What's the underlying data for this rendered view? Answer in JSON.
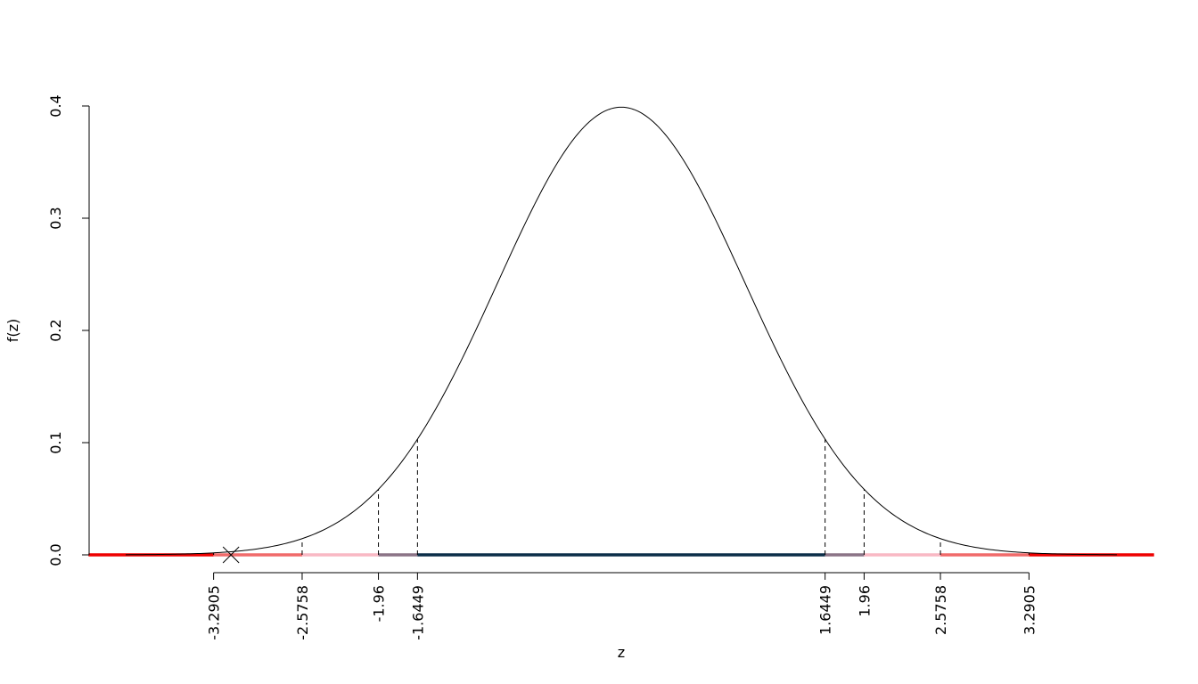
{
  "chart_data": {
    "type": "line",
    "title": "",
    "xlabel": "z",
    "ylabel": "f(z)",
    "xlim": [
      -4.3,
      4.3
    ],
    "ylim": [
      0,
      0.4
    ],
    "yticks": [
      0.0,
      0.1,
      0.2,
      0.3,
      0.4
    ],
    "ytick_labels": [
      "0.0",
      "0.1",
      "0.2",
      "0.3",
      "0.4"
    ],
    "xticks": [
      -3.2905,
      -2.5758,
      -1.96,
      -1.6449,
      1.6449,
      1.96,
      2.5758,
      3.2905
    ],
    "xtick_labels": [
      "-3.2905",
      "-2.5758",
      "-1.96",
      "-1.6449",
      "1.6449",
      "1.96",
      "2.5758",
      "3.2905"
    ],
    "curve": {
      "distribution": "standard normal density",
      "x_range": [
        -4,
        4
      ]
    },
    "critical_values": [
      -3.2905,
      -2.5758,
      -1.96,
      -1.6449,
      1.6449,
      1.96,
      2.5758,
      3.2905
    ],
    "segments": [
      {
        "from": -4.3,
        "to": -3.2905,
        "color": "#ee0000"
      },
      {
        "from": -3.2905,
        "to": -2.5758,
        "color": "#f06a6a"
      },
      {
        "from": -2.5758,
        "to": -1.96,
        "color": "#f9b8c4"
      },
      {
        "from": -1.96,
        "to": -1.6449,
        "color": "#8b7386"
      },
      {
        "from": -1.6449,
        "to": 1.6449,
        "color": "#0b2e48"
      },
      {
        "from": 1.6449,
        "to": 1.96,
        "color": "#8b7386"
      },
      {
        "from": 1.96,
        "to": 2.5758,
        "color": "#f9b8c4"
      },
      {
        "from": 2.5758,
        "to": 3.2905,
        "color": "#f06a6a"
      },
      {
        "from": 3.2905,
        "to": 4.3,
        "color": "#ee0000"
      }
    ],
    "marker": {
      "x": -3.15,
      "y": 0,
      "symbol": "x"
    },
    "grid": false,
    "legend": "none"
  }
}
